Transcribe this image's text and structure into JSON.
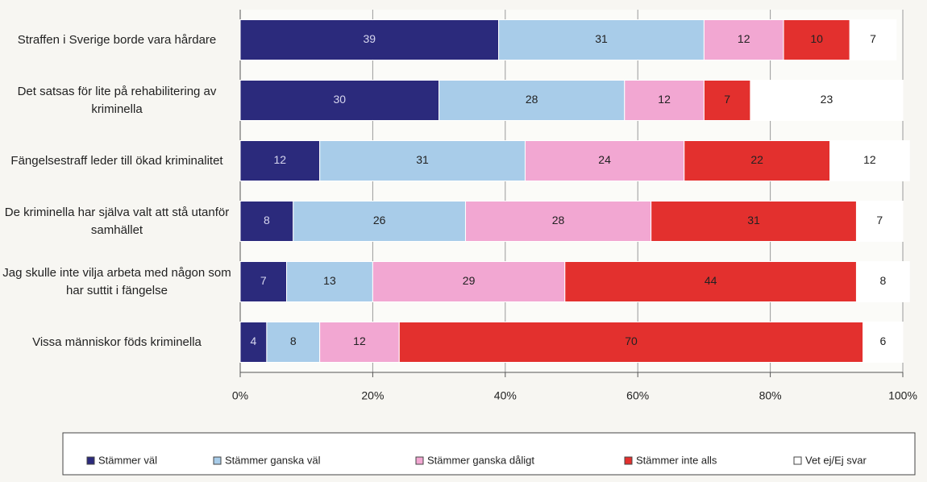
{
  "chart_data": {
    "type": "stacked_barh",
    "categories": [
      "Straffen i Sverige borde vara hårdare",
      "Det satsas för lite på rehabilitering av kriminella",
      "Fängelsestraff leder till ökad kriminalitet",
      "De kriminella har själva valt att stå utanför samhället",
      "Jag skulle inte vilja arbeta med någon som har suttit i fängelse",
      "Vissa människor föds kriminella"
    ],
    "series": [
      {
        "name": "Stämmer väl",
        "color": "#2b2a7c",
        "values": [
          39,
          30,
          12,
          8,
          7,
          4
        ]
      },
      {
        "name": "Stämmer ganska väl",
        "color": "#a8cce9",
        "values": [
          31,
          28,
          31,
          26,
          13,
          8
        ]
      },
      {
        "name": "Stämmer ganska dåligt",
        "color": "#f2a7d2",
        "values": [
          12,
          12,
          24,
          28,
          29,
          12
        ]
      },
      {
        "name": "Stämmer inte alls",
        "color": "#e3302e",
        "values": [
          10,
          7,
          22,
          31,
          44,
          70
        ]
      },
      {
        "name": "Vet ej/Ej svar",
        "color": "#ffffff",
        "values": [
          7,
          23,
          12,
          7,
          8,
          6
        ]
      }
    ],
    "xlim": [
      0,
      100
    ],
    "xticks": [
      {
        "value": 0,
        "label": "0%"
      },
      {
        "value": 20,
        "label": "20%"
      },
      {
        "value": 40,
        "label": "40%"
      },
      {
        "value": 60,
        "label": "60%"
      },
      {
        "value": 80,
        "label": "80%"
      },
      {
        "value": 100,
        "label": "100%"
      }
    ],
    "grid": true,
    "legend": "bottom"
  }
}
